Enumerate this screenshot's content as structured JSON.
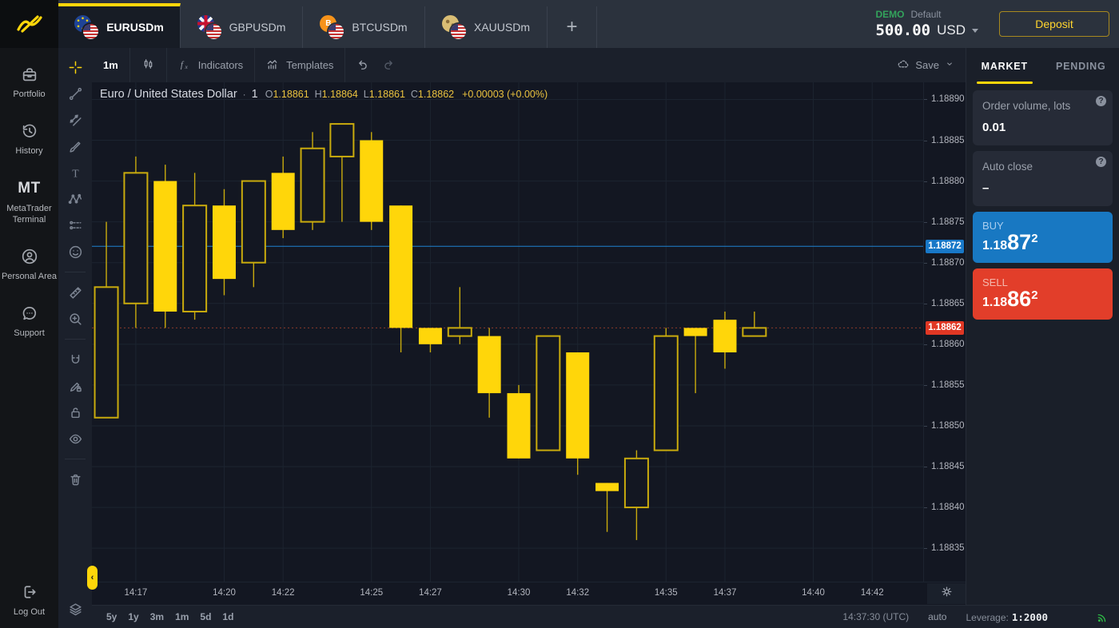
{
  "brand": {
    "logo_icon": "exness-logo"
  },
  "top_bar": {
    "tabs": [
      {
        "label": "EURUSDm",
        "icon": "eur-usd-flag-pair",
        "flag": "eur",
        "symbol": "",
        "active": true
      },
      {
        "label": "GBPUSDm",
        "icon": "gbp-usd-flag-pair",
        "flag": "gbp",
        "symbol": "",
        "active": false
      },
      {
        "label": "BTCUSDm",
        "icon": "btc-usd-flag-pair",
        "flag": "btc",
        "symbol": "B",
        "active": false
      },
      {
        "label": "XAUUSDm",
        "icon": "xau-usd-flag-pair",
        "flag": "xau",
        "symbol": "",
        "active": false
      }
    ],
    "add_tab_label": "+",
    "account": {
      "mode": "DEMO",
      "profile": "Default",
      "balance": "500.00",
      "currency": "USD"
    },
    "deposit_label": "Deposit"
  },
  "sidebar": {
    "items": [
      {
        "label": "Portfolio",
        "icon": "briefcase"
      },
      {
        "label": "History",
        "icon": "history"
      },
      {
        "label": "MetaTrader Terminal",
        "icon": "mt-text",
        "icon_text": "MT"
      },
      {
        "label": "Personal Area",
        "icon": "person"
      },
      {
        "label": "Support",
        "icon": "chat"
      }
    ],
    "logout": {
      "label": "Log Out",
      "icon": "logout"
    }
  },
  "toolbar": {
    "timeframe": "1m",
    "candle_style_icon": "candles",
    "indicators_icon": "fx",
    "indicators_label": "Indicators",
    "templates_icon": "templates",
    "templates_label": "Templates",
    "save_icon": "cloud",
    "save_label": "Save"
  },
  "drawing_toolbar": {
    "groups": [
      [
        "crosshair",
        "trend-line",
        "channel",
        "brush",
        "text",
        "pattern",
        "forecast",
        "emoji"
      ],
      [
        "ruler",
        "zoom-in"
      ],
      [
        "magnet",
        "draw-lock",
        "lock",
        "eye"
      ],
      [
        "trash"
      ]
    ],
    "bottom": [
      "layers"
    ],
    "active": "crosshair"
  },
  "chart_header": {
    "symbol": "Euro / United States Dollar",
    "separator": "·",
    "timeframe": "1",
    "ohlc": [
      {
        "label": "O",
        "value": "1.18861"
      },
      {
        "label": "H",
        "value": "1.18864"
      },
      {
        "label": "L",
        "value": "1.18861"
      },
      {
        "label": "C",
        "value": "1.18862"
      }
    ],
    "change": "+0.00003 (+0.00%)"
  },
  "chart_data": {
    "type": "candlestick",
    "symbol": "EURUSD",
    "interval_minutes": 1,
    "start_time": "14:16",
    "up_style": "hollow",
    "down_style": "filled",
    "grid": true,
    "ylim": [
      1.188309,
      1.188921
    ],
    "xlim_index": [
      -0.49,
      27.73
    ],
    "y_ticks": [
      1.1889,
      1.18885,
      1.1888,
      1.18875,
      1.1887,
      1.18865,
      1.1886,
      1.18855,
      1.1885,
      1.18845,
      1.1884,
      1.18835
    ],
    "x_ticks": [
      "14:17",
      "14:20",
      "14:22",
      "14:25",
      "14:27",
      "14:30",
      "14:32",
      "14:35",
      "14:37",
      "14:40",
      "14:42"
    ],
    "ask": {
      "price": 1.18872,
      "label": "1.18872"
    },
    "bid": {
      "price": 1.18862,
      "label": "1.18862"
    },
    "candles": [
      {
        "t": "14:16",
        "o": 1.18851,
        "h": 1.18875,
        "l": 1.18851,
        "c": 1.18867
      },
      {
        "t": "14:17",
        "o": 1.18865,
        "h": 1.18883,
        "l": 1.18862,
        "c": 1.18881
      },
      {
        "t": "14:18",
        "o": 1.1888,
        "h": 1.18882,
        "l": 1.18862,
        "c": 1.18864
      },
      {
        "t": "14:19",
        "o": 1.18864,
        "h": 1.18881,
        "l": 1.18863,
        "c": 1.18877
      },
      {
        "t": "14:20",
        "o": 1.18877,
        "h": 1.18879,
        "l": 1.18866,
        "c": 1.18868
      },
      {
        "t": "14:21",
        "o": 1.1887,
        "h": 1.1888,
        "l": 1.18867,
        "c": 1.1888
      },
      {
        "t": "14:22",
        "o": 1.18881,
        "h": 1.18883,
        "l": 1.18873,
        "c": 1.18874
      },
      {
        "t": "14:23",
        "o": 1.18875,
        "h": 1.18886,
        "l": 1.18874,
        "c": 1.18884
      },
      {
        "t": "14:24",
        "o": 1.18883,
        "h": 1.18887,
        "l": 1.18875,
        "c": 1.18887
      },
      {
        "t": "14:25",
        "o": 1.18885,
        "h": 1.18886,
        "l": 1.18874,
        "c": 1.18875
      },
      {
        "t": "14:26",
        "o": 1.18877,
        "h": 1.18877,
        "l": 1.18859,
        "c": 1.18862
      },
      {
        "t": "14:27",
        "o": 1.18862,
        "h": 1.18862,
        "l": 1.18859,
        "c": 1.1886
      },
      {
        "t": "14:28",
        "o": 1.18861,
        "h": 1.18867,
        "l": 1.1886,
        "c": 1.18862
      },
      {
        "t": "14:29",
        "o": 1.18861,
        "h": 1.18862,
        "l": 1.18851,
        "c": 1.18854
      },
      {
        "t": "14:30",
        "o": 1.18854,
        "h": 1.18855,
        "l": 1.18846,
        "c": 1.18846
      },
      {
        "t": "14:31",
        "o": 1.18847,
        "h": 1.18861,
        "l": 1.18847,
        "c": 1.18861
      },
      {
        "t": "14:32",
        "o": 1.18859,
        "h": 1.18859,
        "l": 1.18844,
        "c": 1.18846
      },
      {
        "t": "14:33",
        "o": 1.18843,
        "h": 1.18843,
        "l": 1.18837,
        "c": 1.18842
      },
      {
        "t": "14:34",
        "o": 1.1884,
        "h": 1.18847,
        "l": 1.18836,
        "c": 1.18846
      },
      {
        "t": "14:35",
        "o": 1.18847,
        "h": 1.18862,
        "l": 1.18847,
        "c": 1.18861
      },
      {
        "t": "14:36",
        "o": 1.18862,
        "h": 1.18862,
        "l": 1.18854,
        "c": 1.18861
      },
      {
        "t": "14:37",
        "o": 1.18863,
        "h": 1.18864,
        "l": 1.18857,
        "c": 1.18859
      },
      {
        "t": "14:38",
        "o": 1.18861,
        "h": 1.18864,
        "l": 1.18861,
        "c": 1.18862
      }
    ]
  },
  "order_panel": {
    "tabs": [
      {
        "label": "MARKET",
        "active": true
      },
      {
        "label": "PENDING",
        "active": false
      }
    ],
    "help_glyph": "?",
    "cards": [
      {
        "label": "Order volume, lots",
        "value": "0.01"
      },
      {
        "label": "Auto close",
        "value": "–"
      }
    ],
    "buy": {
      "label": "BUY",
      "price_prefix": "1.18",
      "price_main": "87",
      "price_sup": "2"
    },
    "sell": {
      "label": "SELL",
      "price_prefix": "1.18",
      "price_main": "86",
      "price_sup": "2"
    }
  },
  "bottom_bar": {
    "ranges": [
      "5y",
      "1y",
      "3m",
      "1m",
      "5d",
      "1d"
    ],
    "clock": "14:37:30 (UTC)",
    "auto_label": "auto",
    "leverage_label": "Leverage:",
    "leverage_value": "1:2000",
    "connection_icon": "signal"
  },
  "colors": {
    "accent": "#ffd60a",
    "candle": "#ffd60a",
    "candle_dim": "#c9ab0d",
    "chart_bg": "#131722",
    "grid": "#1c2430",
    "ask_line": "#1e82cf",
    "bid_line": "#8b3a2b",
    "badge_ask": "#1878c8",
    "badge_bid": "#e03724",
    "buy": "#1878c2",
    "sell": "#e23e2a",
    "demo": "#33a35c"
  }
}
